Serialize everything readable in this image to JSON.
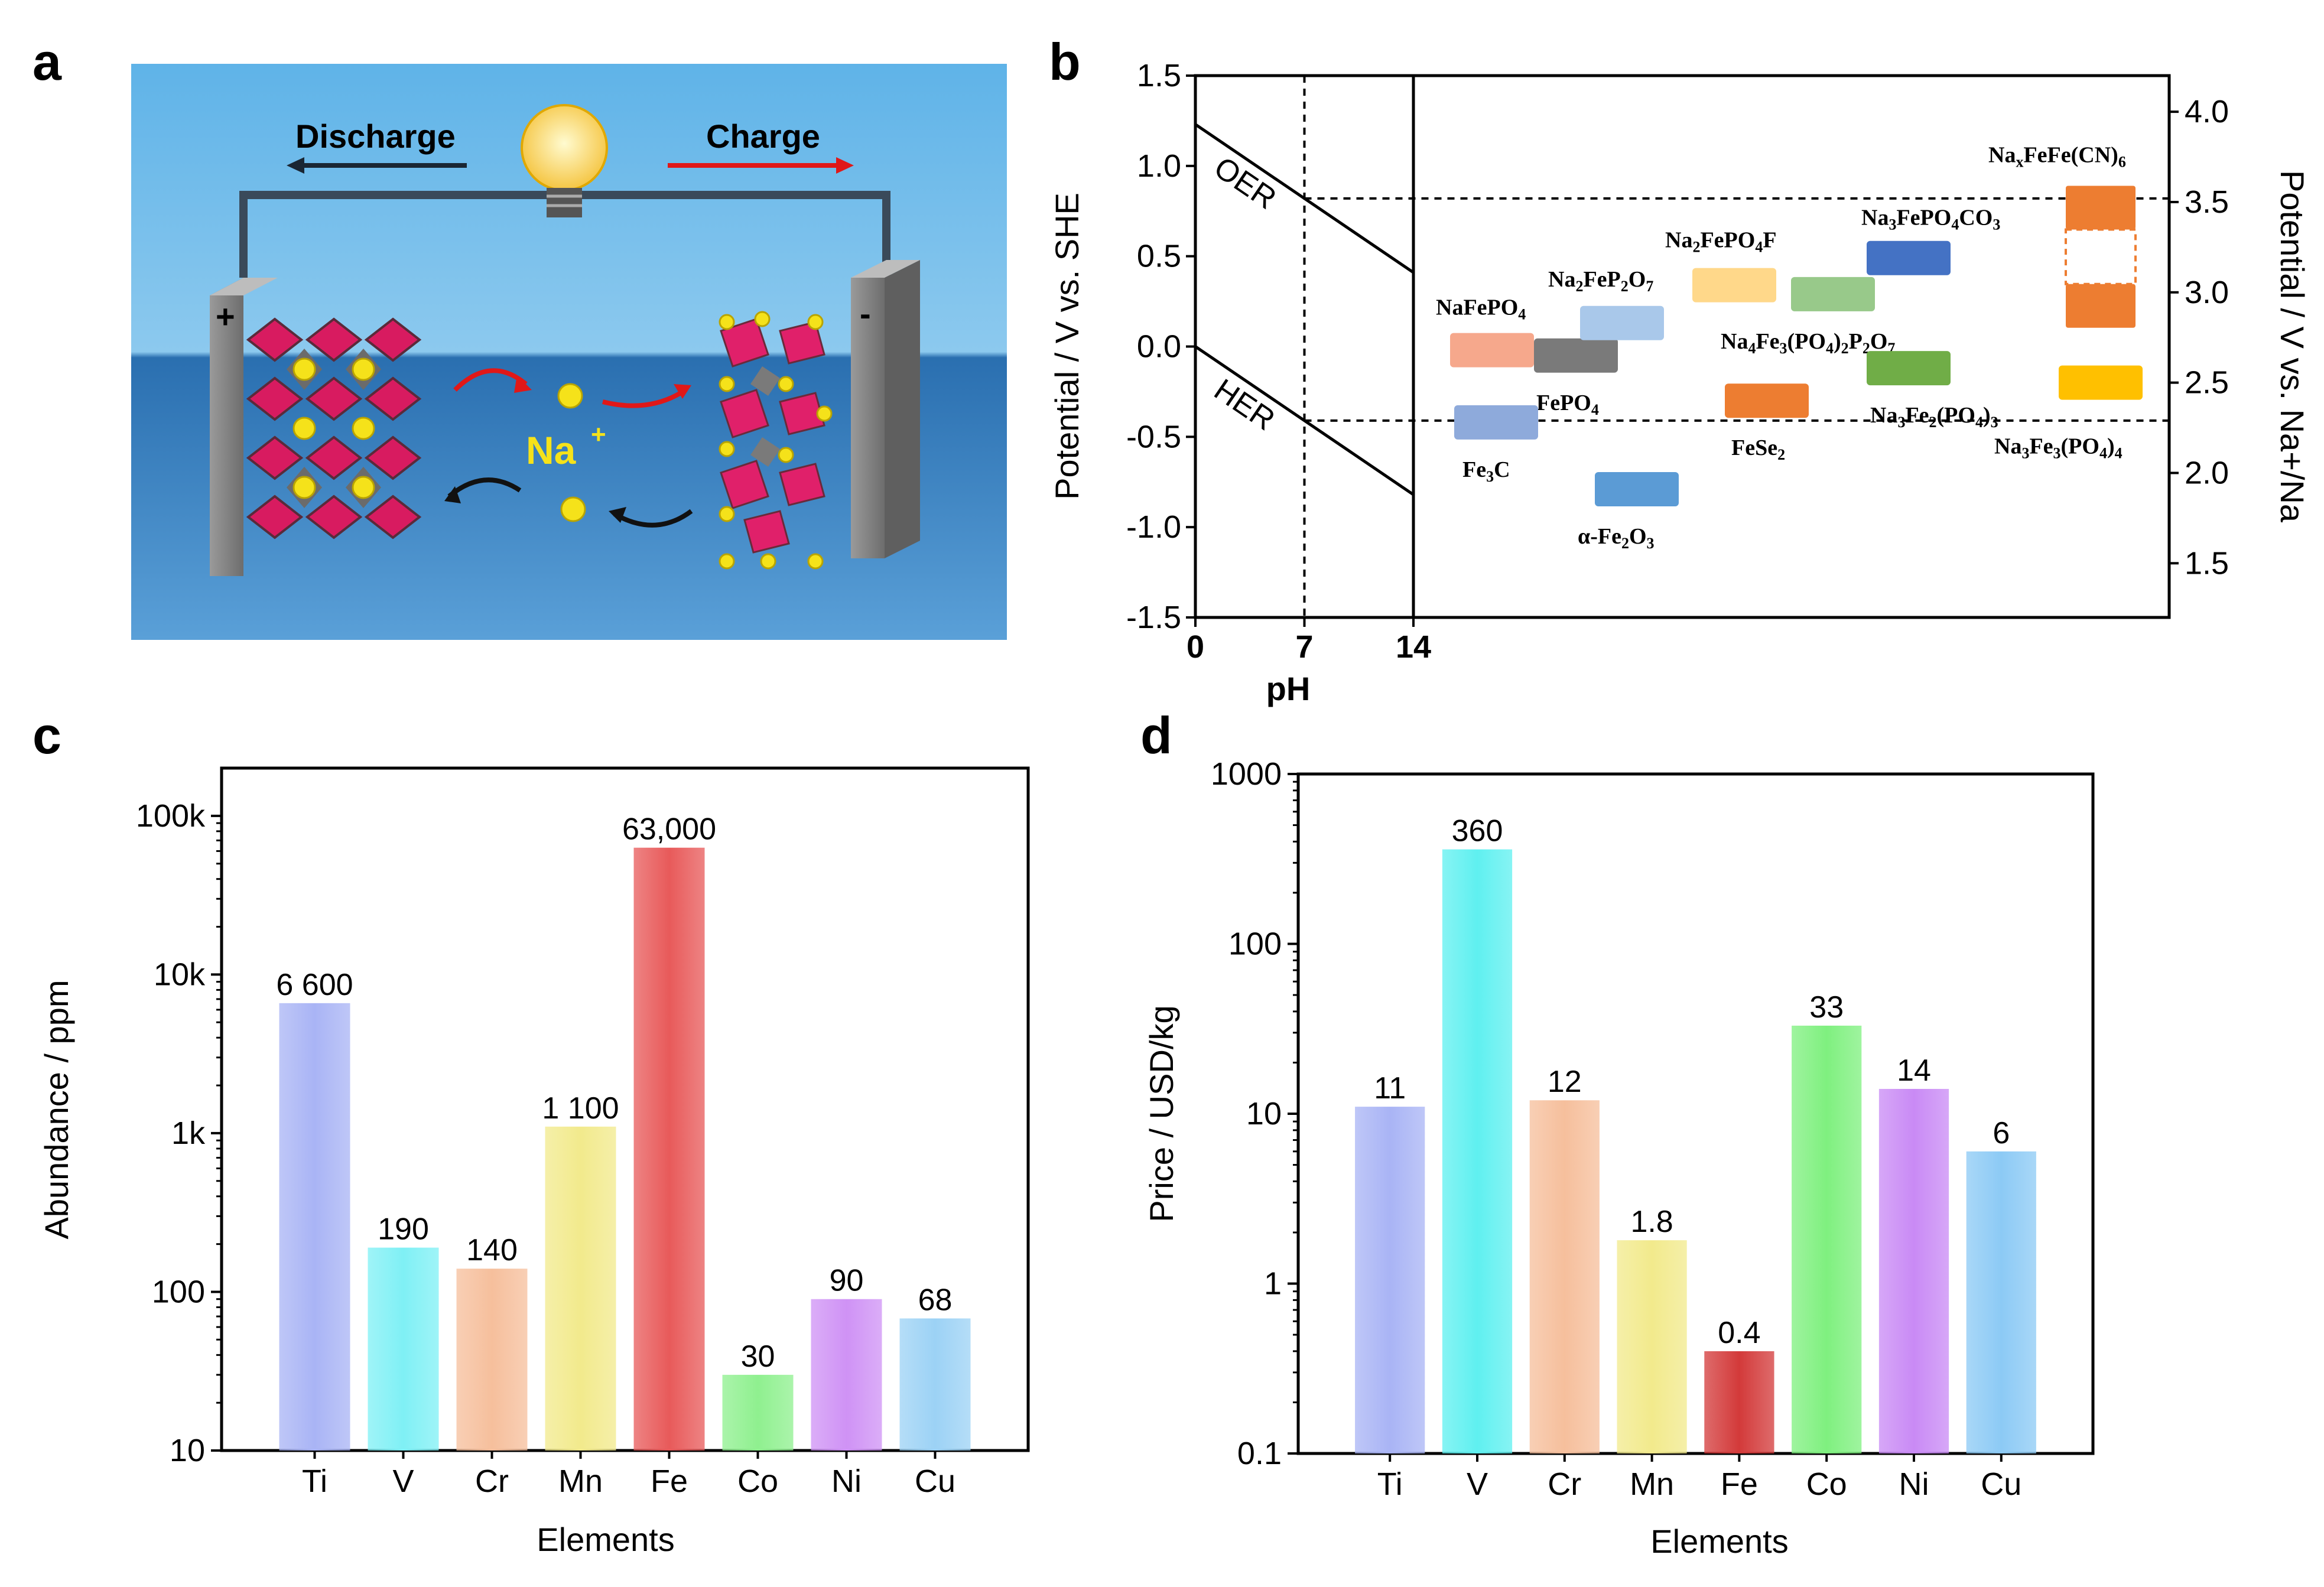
{
  "panels": {
    "a": {
      "label": "a",
      "discharge_label": "Discharge",
      "charge_label": "Charge",
      "ion_label": "Na",
      "ion_charge": "+",
      "positive_terminal": "+",
      "negative_terminal": "-"
    },
    "b": {
      "label": "b"
    },
    "c": {
      "label": "c"
    },
    "d": {
      "label": "d"
    }
  },
  "chart_data": [
    {
      "id": "b",
      "type": "diagram",
      "xlabel": "pH",
      "xticks": [
        0,
        7,
        14
      ],
      "ylabel_left": "Potential / V vs. SHE",
      "ylim_left": [
        -1.5,
        1.5
      ],
      "yticks_left": [
        "1.5",
        "1.0",
        "0.5",
        "0.0",
        "-0.5",
        "-1.0",
        "-1.5"
      ],
      "ylabel_right": "Potential / V vs. Na+/Na",
      "ylim_right": [
        1.2,
        4.2
      ],
      "yticks_right": [
        "4.0",
        "3.5",
        "3.0",
        "2.5",
        "2.0",
        "1.5"
      ],
      "lines": [
        {
          "name": "OER",
          "label": "OER",
          "ph_range": [
            0,
            14
          ],
          "potential": [
            1.23,
            0.41
          ]
        },
        {
          "name": "HER",
          "label": "HER",
          "ph_range": [
            0,
            14
          ],
          "potential": [
            0.0,
            -0.82
          ]
        }
      ],
      "ph_marker": 7,
      "window_lines_she": [
        0.82,
        -0.41
      ],
      "materials": [
        {
          "formula": "NaFePO4",
          "parts": [
            [
              "NaFePO",
              ""
            ],
            [
              "4",
              "sub"
            ]
          ],
          "potential": -0.02,
          "color": "#f6a88c"
        },
        {
          "formula": "FePO4",
          "parts": [
            [
              "FePO",
              ""
            ],
            [
              "4",
              "sub"
            ]
          ],
          "potential": -0.05,
          "color": "#7a7a7a"
        },
        {
          "formula": "Na2FeP2O7",
          "parts": [
            [
              "Na",
              ""
            ],
            [
              "2",
              "sub"
            ],
            [
              "FeP",
              ""
            ],
            [
              "2",
              "sub"
            ],
            [
              "O",
              ""
            ],
            [
              "7",
              "sub"
            ]
          ],
          "potential": 0.13,
          "color": "#a9c8ea"
        },
        {
          "formula": "Fe3C",
          "parts": [
            [
              "Fe",
              ""
            ],
            [
              "3",
              "sub"
            ],
            [
              "C",
              ""
            ]
          ],
          "potential": -0.42,
          "color": "#8eaadb"
        },
        {
          "formula": "α-Fe2O3",
          "parts": [
            [
              "α-Fe",
              ""
            ],
            [
              "2",
              "sub"
            ],
            [
              "O",
              ""
            ],
            [
              "3",
              "sub"
            ]
          ],
          "potential": -0.79,
          "color": "#5b9bd5"
        },
        {
          "formula": "Na2FePO4F",
          "parts": [
            [
              "Na",
              ""
            ],
            [
              "2",
              "sub"
            ],
            [
              "FePO",
              ""
            ],
            [
              "4",
              "sub"
            ],
            [
              "F",
              ""
            ]
          ],
          "potential": 0.34,
          "color": "#ffd88a"
        },
        {
          "formula": "Na4Fe3(PO4)2P2O7",
          "parts": [
            [
              "Na",
              ""
            ],
            [
              "4",
              "sub"
            ],
            [
              "Fe",
              ""
            ],
            [
              "3",
              "sub"
            ],
            [
              "(PO",
              ""
            ],
            [
              "4",
              "sub"
            ],
            [
              ")",
              ""
            ],
            [
              "2",
              "sub"
            ],
            [
              "P",
              ""
            ],
            [
              "2",
              "sub"
            ],
            [
              "O",
              ""
            ],
            [
              "7",
              "sub"
            ]
          ],
          "potential": 0.29,
          "color": "#98c98a"
        },
        {
          "formula": "FeSe2",
          "parts": [
            [
              "FeSe",
              ""
            ],
            [
              "2",
              "sub"
            ]
          ],
          "potential": -0.3,
          "color": "#ed7d31"
        },
        {
          "formula": "Na3FePO4CO3",
          "parts": [
            [
              "Na",
              ""
            ],
            [
              "3",
              "sub"
            ],
            [
              "FePO",
              ""
            ],
            [
              "4",
              "sub"
            ],
            [
              "CO",
              ""
            ],
            [
              "3",
              "sub"
            ]
          ],
          "potential": 0.49,
          "color": "#4472c4"
        },
        {
          "formula": "Na3Fe2(PO4)3",
          "parts": [
            [
              "Na",
              ""
            ],
            [
              "3",
              "sub"
            ],
            [
              "Fe",
              ""
            ],
            [
              "2",
              "sub"
            ],
            [
              "(PO",
              ""
            ],
            [
              "4",
              "sub"
            ],
            [
              ")",
              ""
            ],
            [
              "3",
              "sub"
            ]
          ],
          "potential": -0.12,
          "color": "#70ad47"
        },
        {
          "formula": "NaxFeFe(CN)6",
          "parts": [
            [
              "Na",
              ""
            ],
            [
              "x",
              "sub"
            ],
            [
              "FeFe(CN)",
              ""
            ],
            [
              "6",
              "sub"
            ]
          ],
          "potential_range": [
            0.13,
            0.89
          ],
          "color": "#ed7d31"
        },
        {
          "formula": "Na3Fe3(PO4)4",
          "parts": [
            [
              "Na",
              ""
            ],
            [
              "3",
              "sub"
            ],
            [
              "Fe",
              ""
            ],
            [
              "3",
              "sub"
            ],
            [
              "(PO",
              ""
            ],
            [
              "4",
              "sub"
            ],
            [
              ")",
              ""
            ],
            [
              "4",
              "sub"
            ]
          ],
          "potential": -0.2,
          "color": "#ffc000"
        }
      ]
    },
    {
      "id": "c",
      "type": "bar",
      "yscale": "log",
      "categories": [
        "Ti",
        "V",
        "Cr",
        "Mn",
        "Fe",
        "Co",
        "Ni",
        "Cu"
      ],
      "values": [
        6600,
        190,
        140,
        1100,
        63000,
        30,
        90,
        68
      ],
      "value_labels": [
        "6 600",
        "190",
        "140",
        "1 100",
        "63,000",
        "30",
        "90",
        "68"
      ],
      "colors": [
        "#a9b4f5",
        "#7ff0f5",
        "#f6bf9c",
        "#f2ea8c",
        "#e85a5a",
        "#8ff08f",
        "#cf92f5",
        "#9cd2f5"
      ],
      "xlabel": "Elements",
      "ylabel": "Abundance / ppm",
      "ylim": [
        10,
        200000
      ],
      "yticks": [
        10,
        100,
        1000,
        10000,
        100000
      ],
      "ytick_labels": [
        "10",
        "100",
        "1k",
        "10k",
        "100k"
      ]
    },
    {
      "id": "d",
      "type": "bar",
      "yscale": "log",
      "categories": [
        "Ti",
        "V",
        "Cr",
        "Mn",
        "Fe",
        "Co",
        "Ni",
        "Cu"
      ],
      "values": [
        11,
        360,
        12,
        1.8,
        0.4,
        33,
        14,
        6
      ],
      "value_labels": [
        "11",
        "360",
        "12",
        "1.8",
        "0.4",
        "33",
        "14",
        "6"
      ],
      "colors": [
        "#a9b4f5",
        "#5ff0f0",
        "#f6bf9c",
        "#f2ea8c",
        "#d33a3a",
        "#7ff07f",
        "#c98af5",
        "#8ccaf5"
      ],
      "xlabel": "Elements",
      "ylabel": "Price / USD/kg",
      "ylim": [
        0.1,
        1000
      ],
      "yticks": [
        0.1,
        1,
        10,
        100,
        1000
      ],
      "ytick_labels": [
        "0.1",
        "1",
        "10",
        "100",
        "1000"
      ]
    }
  ]
}
